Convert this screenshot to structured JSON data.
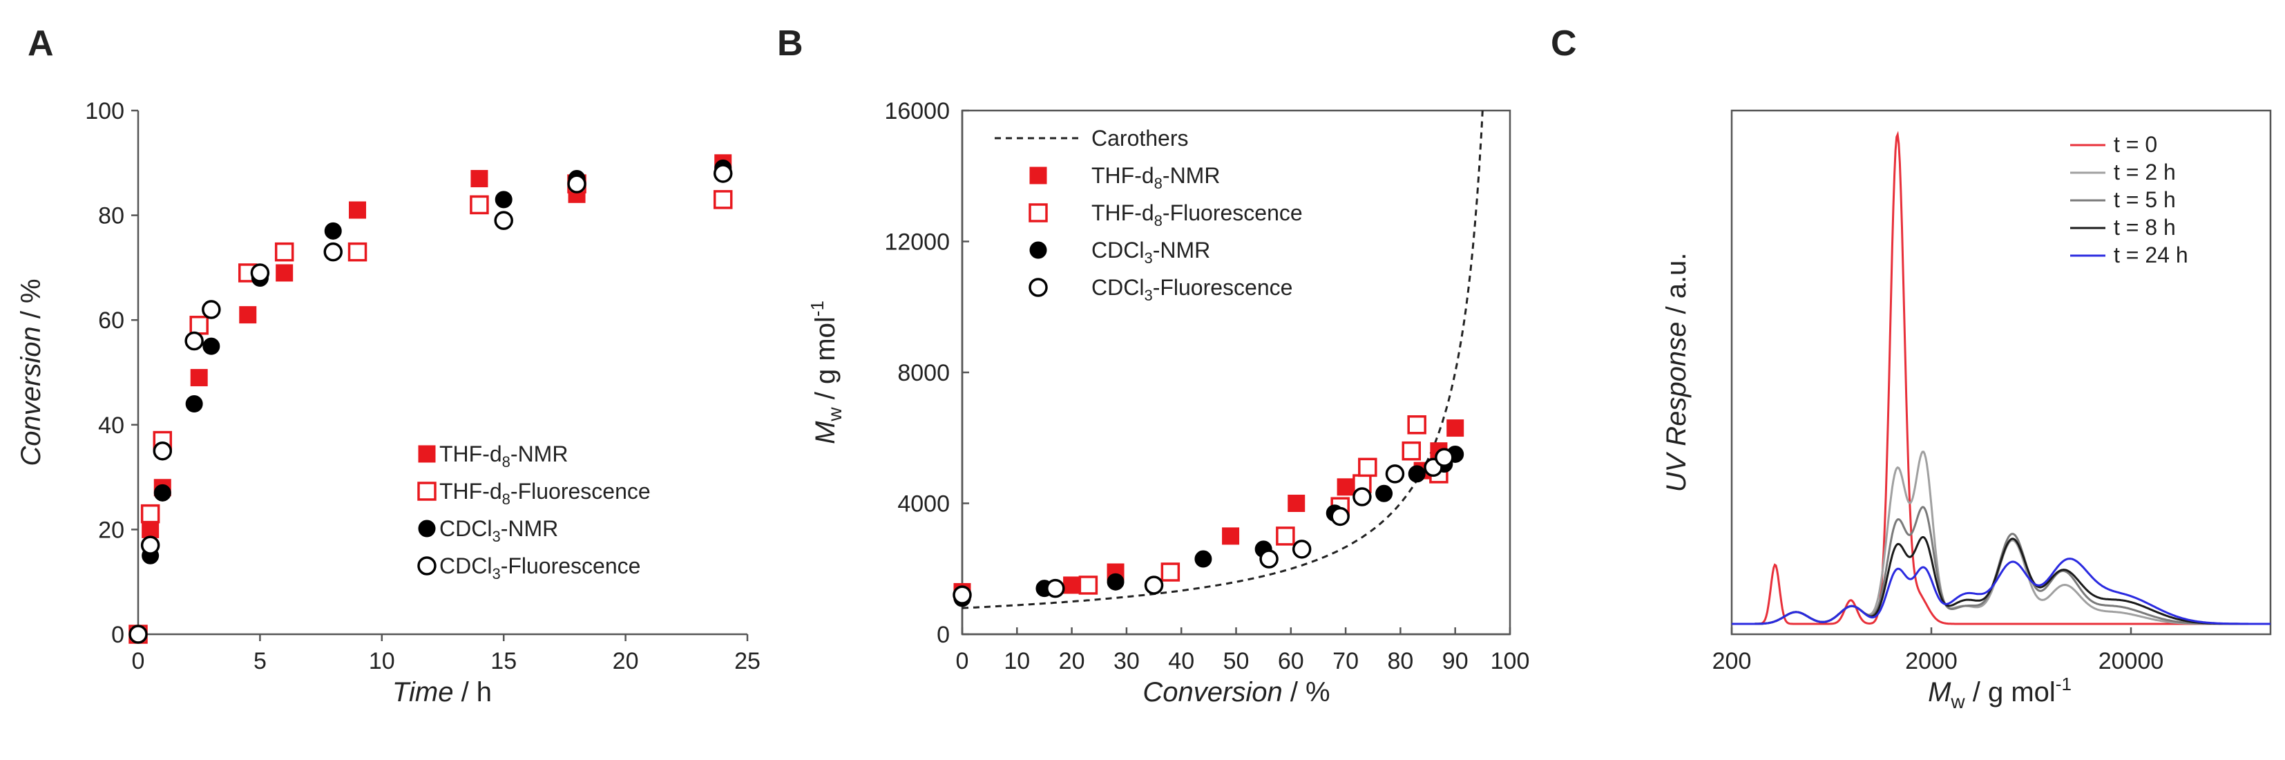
{
  "chart_data": [
    {
      "panel": "A",
      "type": "scatter",
      "xlabel_italic": "Time",
      "xlabel_unit": " / h",
      "ylabel_italic": "Conversion",
      "ylabel_unit": " / %",
      "xlim": [
        0,
        25
      ],
      "ylim": [
        0,
        100
      ],
      "xticks": [
        0,
        5,
        10,
        15,
        20,
        25
      ],
      "yticks": [
        0,
        20,
        40,
        60,
        80,
        100
      ],
      "legend_position": "bottom-right",
      "series": [
        {
          "name": "THF-d8-NMR",
          "legend_main": "THF-d",
          "legend_sub": "8",
          "legend_rest": "-NMR",
          "marker": "square-filled",
          "color": "#e8181e",
          "points": [
            [
              0,
              0
            ],
            [
              0.5,
              20
            ],
            [
              1,
              28
            ],
            [
              2.5,
              49
            ],
            [
              4.5,
              61
            ],
            [
              6,
              69
            ],
            [
              9,
              81
            ],
            [
              14,
              87
            ],
            [
              18,
              84
            ],
            [
              24,
              90
            ]
          ]
        },
        {
          "name": "THF-d8-Fluorescence",
          "legend_main": "THF-d",
          "legend_sub": "8",
          "legend_rest": "-Fluorescence",
          "marker": "square-open",
          "color": "#e8181e",
          "points": [
            [
              0,
              0
            ],
            [
              0.5,
              23
            ],
            [
              1,
              37
            ],
            [
              2.5,
              59
            ],
            [
              4.5,
              69
            ],
            [
              6,
              73
            ],
            [
              9,
              73
            ],
            [
              14,
              82
            ],
            [
              18,
              86
            ],
            [
              24,
              83
            ]
          ]
        },
        {
          "name": "CDCl3-NMR",
          "legend_main": "CDCl",
          "legend_sub": "3",
          "legend_rest": "-NMR",
          "marker": "circle-filled",
          "color": "#000000",
          "points": [
            [
              0,
              0
            ],
            [
              0.5,
              15
            ],
            [
              1,
              27
            ],
            [
              2.3,
              44
            ],
            [
              3,
              55
            ],
            [
              5,
              68
            ],
            [
              8,
              77
            ],
            [
              15,
              83
            ],
            [
              18,
              87
            ],
            [
              24,
              89
            ]
          ]
        },
        {
          "name": "CDCl3-Fluorescence",
          "legend_main": "CDCl",
          "legend_sub": "3",
          "legend_rest": "-Fluorescence",
          "marker": "circle-open",
          "color": "#000000",
          "points": [
            [
              0,
              0
            ],
            [
              0.5,
              17
            ],
            [
              1,
              35
            ],
            [
              2.3,
              56
            ],
            [
              3,
              62
            ],
            [
              5,
              69
            ],
            [
              8,
              73
            ],
            [
              15,
              79
            ],
            [
              18,
              86
            ],
            [
              24,
              88
            ]
          ]
        }
      ]
    },
    {
      "panel": "B",
      "type": "scatter",
      "xlabel_italic": "Conversion",
      "xlabel_unit": " / %",
      "ylabel_italic": "M",
      "ylabel_sub": "w",
      "ylabel_unit": " / g mol",
      "ylabel_sup": "-1",
      "xlim": [
        0,
        100
      ],
      "ylim": [
        0,
        16000
      ],
      "xticks": [
        0,
        10,
        20,
        30,
        40,
        50,
        60,
        70,
        80,
        90,
        100
      ],
      "yticks": [
        0,
        4000,
        8000,
        12000,
        16000
      ],
      "legend_position": "top-left",
      "line_series": {
        "name": "Carothers",
        "legend_main": "Carothers",
        "style": "dashed",
        "formula": "800/(1-p)"
      },
      "series": [
        {
          "name": "THF-d8-NMR",
          "legend_main": "THF-d",
          "legend_sub": "8",
          "legend_rest": "-NMR",
          "marker": "square-filled",
          "color": "#e8181e",
          "points": [
            [
              0,
              1300
            ],
            [
              20,
              1500
            ],
            [
              28,
              1900
            ],
            [
              49,
              3000
            ],
            [
              61,
              4000
            ],
            [
              70,
              4500
            ],
            [
              84,
              5000
            ],
            [
              87,
              5600
            ],
            [
              90,
              6300
            ]
          ]
        },
        {
          "name": "THF-d8-Fluorescence",
          "legend_main": "THF-d",
          "legend_sub": "8",
          "legend_rest": "-Fluorescence",
          "marker": "square-open",
          "color": "#e8181e",
          "points": [
            [
              23,
              1500
            ],
            [
              38,
              1900
            ],
            [
              59,
              3000
            ],
            [
              69,
              3900
            ],
            [
              73,
              4600
            ],
            [
              74,
              5100
            ],
            [
              82,
              5600
            ],
            [
              83,
              6400
            ],
            [
              87,
              4900
            ]
          ]
        },
        {
          "name": "CDCl3-NMR",
          "legend_main": "CDCl",
          "legend_sub": "3",
          "legend_rest": "-NMR",
          "marker": "circle-filled",
          "color": "#000000",
          "points": [
            [
              0,
              1100
            ],
            [
              15,
              1400
            ],
            [
              28,
              1600
            ],
            [
              44,
              2300
            ],
            [
              55,
              2600
            ],
            [
              68,
              3700
            ],
            [
              77,
              4300
            ],
            [
              83,
              4900
            ],
            [
              88,
              5200
            ],
            [
              90,
              5500
            ]
          ]
        },
        {
          "name": "CDCl3-Fluorescence",
          "legend_main": "CDCl",
          "legend_sub": "3",
          "legend_rest": "-Fluorescence",
          "marker": "circle-open",
          "color": "#000000",
          "points": [
            [
              0,
              1200
            ],
            [
              17,
              1400
            ],
            [
              35,
              1500
            ],
            [
              56,
              2300
            ],
            [
              62,
              2600
            ],
            [
              69,
              3600
            ],
            [
              73,
              4200
            ],
            [
              79,
              4900
            ],
            [
              86,
              5100
            ],
            [
              88,
              5400
            ]
          ]
        }
      ]
    },
    {
      "panel": "C",
      "type": "line",
      "xlabel_italic": "M",
      "xlabel_sub": "w",
      "xlabel_unit": " / g mol",
      "xlabel_sup": "-1",
      "ylabel_italic": "UV Response",
      "ylabel_unit": " / a.u.",
      "xscale": "log",
      "xlim": [
        200,
        100000
      ],
      "xticks": [
        200,
        2000,
        20000
      ],
      "xtick_labels": [
        "200",
        "2000",
        "20000"
      ],
      "ylim": [
        0,
        1
      ],
      "legend_position": "top-right",
      "series": [
        {
          "name": "t = 0",
          "color": "#e8303a",
          "peaks": [
            [
              330,
              0.1,
              0.022
            ],
            [
              790,
              0.04,
              0.03
            ],
            [
              1350,
              0.82,
              0.035
            ],
            [
              1700,
              0.05,
              0.05
            ]
          ]
        },
        {
          "name": "t = 2 h",
          "color": "#a0a0a0",
          "peaks": [
            [
              420,
              0.02,
              0.06
            ],
            [
              800,
              0.03,
              0.06
            ],
            [
              1350,
              0.26,
              0.05
            ],
            [
              1830,
              0.28,
              0.045
            ],
            [
              2900,
              0.03,
              0.09
            ],
            [
              5100,
              0.14,
              0.07
            ],
            [
              9200,
              0.06,
              0.08
            ],
            [
              16000,
              0.02,
              0.15
            ]
          ]
        },
        {
          "name": "t = 5 h",
          "color": "#7a7a7a",
          "peaks": [
            [
              420,
              0.02,
              0.06
            ],
            [
              800,
              0.03,
              0.06
            ],
            [
              1350,
              0.17,
              0.05
            ],
            [
              1830,
              0.19,
              0.05
            ],
            [
              3000,
              0.03,
              0.09
            ],
            [
              5100,
              0.15,
              0.07
            ],
            [
              9000,
              0.08,
              0.08
            ],
            [
              16000,
              0.03,
              0.16
            ]
          ]
        },
        {
          "name": "t = 8 h",
          "color": "#1a1a1a",
          "peaks": [
            [
              420,
              0.02,
              0.06
            ],
            [
              800,
              0.03,
              0.06
            ],
            [
              1350,
              0.13,
              0.05
            ],
            [
              1830,
              0.14,
              0.05
            ],
            [
              3000,
              0.04,
              0.09
            ],
            [
              5100,
              0.14,
              0.07
            ],
            [
              9000,
              0.08,
              0.09
            ],
            [
              17000,
              0.04,
              0.17
            ]
          ]
        },
        {
          "name": "t = 24 h",
          "color": "#2a2ae0",
          "peaks": [
            [
              420,
              0.02,
              0.06
            ],
            [
              800,
              0.03,
              0.06
            ],
            [
              1350,
              0.09,
              0.05
            ],
            [
              1830,
              0.09,
              0.05
            ],
            [
              3000,
              0.05,
              0.09
            ],
            [
              5100,
              0.1,
              0.08
            ],
            [
              9500,
              0.09,
              0.1
            ],
            [
              17000,
              0.05,
              0.18
            ]
          ]
        }
      ]
    }
  ],
  "panel_labels": [
    "A",
    "B",
    "C"
  ]
}
